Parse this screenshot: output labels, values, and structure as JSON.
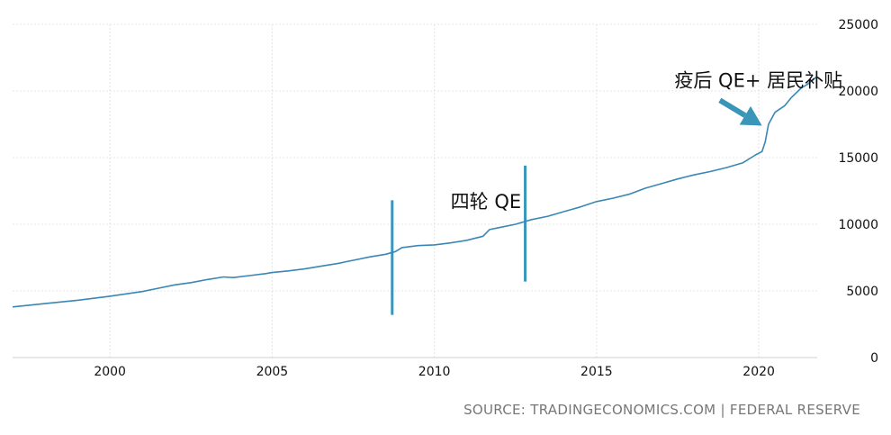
{
  "chart_data": {
    "type": "line",
    "title": "",
    "xlabel": "",
    "ylabel": "",
    "xlim": [
      1997,
      2021.8
    ],
    "ylim": [
      0,
      25000
    ],
    "x_ticks": [
      2000,
      2005,
      2010,
      2015,
      2020
    ],
    "y_ticks": [
      0,
      5000,
      10000,
      15000,
      20000,
      25000
    ],
    "y_axis_position": "right",
    "grid": true,
    "series": [
      {
        "color": "#3a87b5",
        "x": [
          1997.0,
          1998.0,
          1999.0,
          2000.0,
          2000.5,
          2001.0,
          2001.5,
          2002.0,
          2002.5,
          2003.0,
          2003.5,
          2003.8,
          2004.3,
          2004.8,
          2005.0,
          2005.5,
          2006.0,
          2006.5,
          2007.0,
          2007.5,
          2008.0,
          2008.5,
          2008.8,
          2009.0,
          2009.5,
          2010.0,
          2010.5,
          2011.0,
          2011.5,
          2011.7,
          2012.0,
          2012.5,
          2013.0,
          2013.5,
          2014.0,
          2014.5,
          2015.0,
          2015.5,
          2016.0,
          2016.5,
          2017.0,
          2017.5,
          2018.0,
          2018.5,
          2019.0,
          2019.5,
          2019.9,
          2020.1,
          2020.2,
          2020.3,
          2020.5,
          2020.8,
          2021.0,
          2021.3,
          2021.5,
          2021.8
        ],
        "values": [
          3800,
          4050,
          4300,
          4600,
          4780,
          4950,
          5200,
          5450,
          5620,
          5850,
          6050,
          6000,
          6150,
          6300,
          6380,
          6500,
          6650,
          6850,
          7050,
          7300,
          7550,
          7750,
          7950,
          8250,
          8400,
          8450,
          8600,
          8800,
          9100,
          9600,
          9750,
          10000,
          10350,
          10600,
          10950,
          11300,
          11700,
          11950,
          12250,
          12700,
          13050,
          13400,
          13700,
          13950,
          14250,
          14600,
          15200,
          15450,
          16200,
          17500,
          18400,
          18900,
          19500,
          20200,
          20500,
          21100
        ]
      }
    ],
    "annotations": [
      {
        "text": "四轮 QE",
        "x": 2010.5,
        "y": 11200
      },
      {
        "text": "疫后 QE+ 居民补贴",
        "x": 2017.4,
        "y": 20300
      }
    ],
    "markers": [
      {
        "x": 2008.7,
        "y0": 3200,
        "y1": 11800,
        "color": "#3a96b9"
      },
      {
        "x": 2012.8,
        "y0": 5700,
        "y1": 14400,
        "color": "#3a96b9"
      }
    ],
    "arrow": {
      "from": [
        2018.8,
        19300
      ],
      "to": [
        2020.1,
        17400
      ],
      "color": "#3a96b9"
    },
    "source": "SOURCE: TRADINGECONOMICS.COM | FEDERAL RESERVE"
  }
}
